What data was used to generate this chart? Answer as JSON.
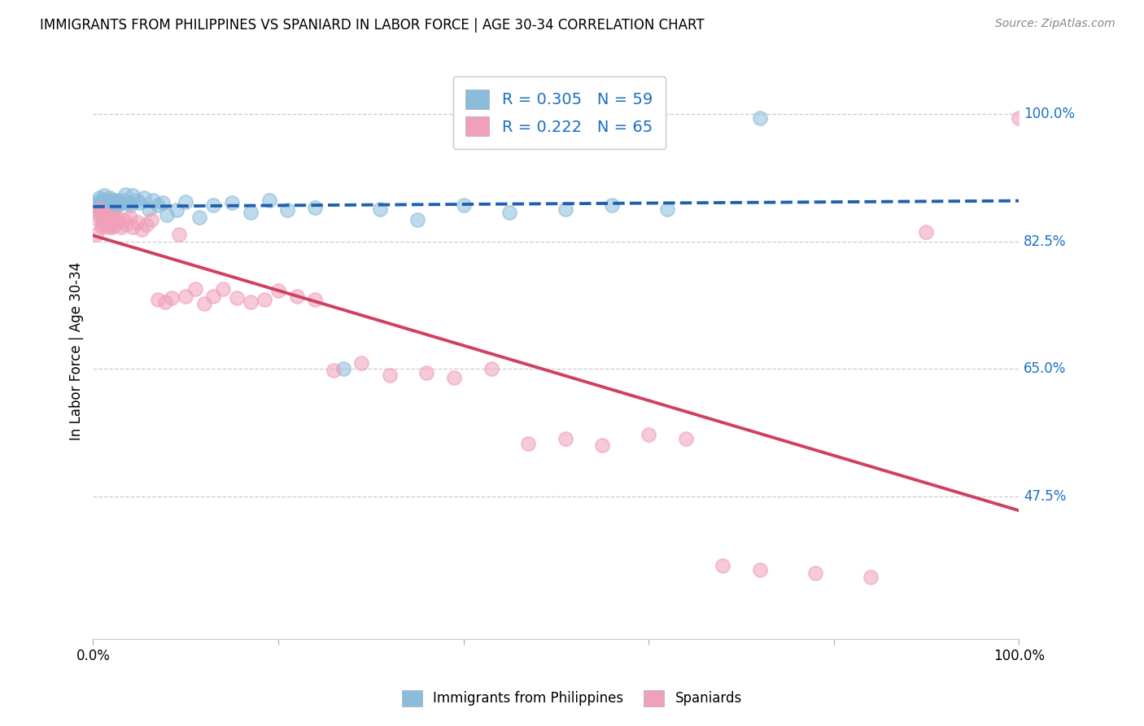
{
  "title": "IMMIGRANTS FROM PHILIPPINES VS SPANIARD IN LABOR FORCE | AGE 30-34 CORRELATION CHART",
  "source": "Source: ZipAtlas.com",
  "ylabel": "In Labor Force | Age 30-34",
  "ytick_labels": [
    "100.0%",
    "82.5%",
    "65.0%",
    "47.5%"
  ],
  "ytick_values": [
    1.0,
    0.825,
    0.65,
    0.475
  ],
  "xlim": [
    0.0,
    1.0
  ],
  "ylim": [
    0.28,
    1.07
  ],
  "R_blue": 0.305,
  "N_blue": 59,
  "R_pink": 0.222,
  "N_pink": 65,
  "blue_color": "#8BBCDC",
  "pink_color": "#F0A0B8",
  "trend_blue_color": "#2060B0",
  "trend_pink_color": "#D04060",
  "legend_label_blue": "Immigrants from Philippines",
  "legend_label_pink": "Spaniards",
  "blue_x": [
    0.003,
    0.005,
    0.006,
    0.007,
    0.008,
    0.009,
    0.01,
    0.01,
    0.011,
    0.012,
    0.013,
    0.014,
    0.015,
    0.015,
    0.016,
    0.017,
    0.018,
    0.019,
    0.02,
    0.021,
    0.022,
    0.023,
    0.024,
    0.025,
    0.026,
    0.027,
    0.028,
    0.03,
    0.032,
    0.035,
    0.038,
    0.04,
    0.043,
    0.047,
    0.05,
    0.055,
    0.06,
    0.065,
    0.07,
    0.075,
    0.08,
    0.09,
    0.1,
    0.115,
    0.13,
    0.15,
    0.17,
    0.19,
    0.21,
    0.24,
    0.27,
    0.31,
    0.35,
    0.4,
    0.45,
    0.51,
    0.56,
    0.62,
    0.72
  ],
  "blue_y": [
    0.875,
    0.88,
    0.87,
    0.885,
    0.878,
    0.872,
    0.882,
    0.865,
    0.876,
    0.888,
    0.87,
    0.878,
    0.882,
    0.875,
    0.88,
    0.87,
    0.885,
    0.875,
    0.878,
    0.882,
    0.87,
    0.875,
    0.88,
    0.878,
    0.882,
    0.875,
    0.88,
    0.878,
    0.882,
    0.89,
    0.878,
    0.875,
    0.888,
    0.882,
    0.878,
    0.885,
    0.87,
    0.882,
    0.875,
    0.878,
    0.862,
    0.868,
    0.88,
    0.858,
    0.875,
    0.878,
    0.865,
    0.882,
    0.868,
    0.872,
    0.65,
    0.87,
    0.855,
    0.875,
    0.865,
    0.87,
    0.875,
    0.87,
    0.995
  ],
  "pink_x": [
    0.003,
    0.005,
    0.006,
    0.007,
    0.008,
    0.009,
    0.01,
    0.01,
    0.011,
    0.012,
    0.013,
    0.014,
    0.015,
    0.015,
    0.016,
    0.017,
    0.018,
    0.019,
    0.02,
    0.021,
    0.022,
    0.023,
    0.025,
    0.027,
    0.03,
    0.033,
    0.036,
    0.04,
    0.043,
    0.048,
    0.052,
    0.058,
    0.063,
    0.07,
    0.078,
    0.085,
    0.093,
    0.1,
    0.11,
    0.12,
    0.13,
    0.14,
    0.155,
    0.17,
    0.185,
    0.2,
    0.22,
    0.24,
    0.26,
    0.29,
    0.32,
    0.36,
    0.39,
    0.43,
    0.47,
    0.51,
    0.55,
    0.6,
    0.64,
    0.68,
    0.72,
    0.78,
    0.84,
    0.9,
    1.0
  ],
  "pink_y": [
    0.835,
    0.865,
    0.855,
    0.87,
    0.858,
    0.845,
    0.86,
    0.848,
    0.855,
    0.862,
    0.85,
    0.858,
    0.848,
    0.86,
    0.852,
    0.845,
    0.855,
    0.848,
    0.858,
    0.845,
    0.855,
    0.848,
    0.858,
    0.852,
    0.845,
    0.855,
    0.848,
    0.858,
    0.845,
    0.852,
    0.842,
    0.848,
    0.855,
    0.745,
    0.742,
    0.748,
    0.835,
    0.75,
    0.76,
    0.74,
    0.75,
    0.76,
    0.748,
    0.742,
    0.745,
    0.758,
    0.75,
    0.745,
    0.648,
    0.658,
    0.642,
    0.645,
    0.638,
    0.65,
    0.548,
    0.555,
    0.545,
    0.56,
    0.555,
    0.38,
    0.375,
    0.37,
    0.365,
    0.838,
    0.995
  ]
}
